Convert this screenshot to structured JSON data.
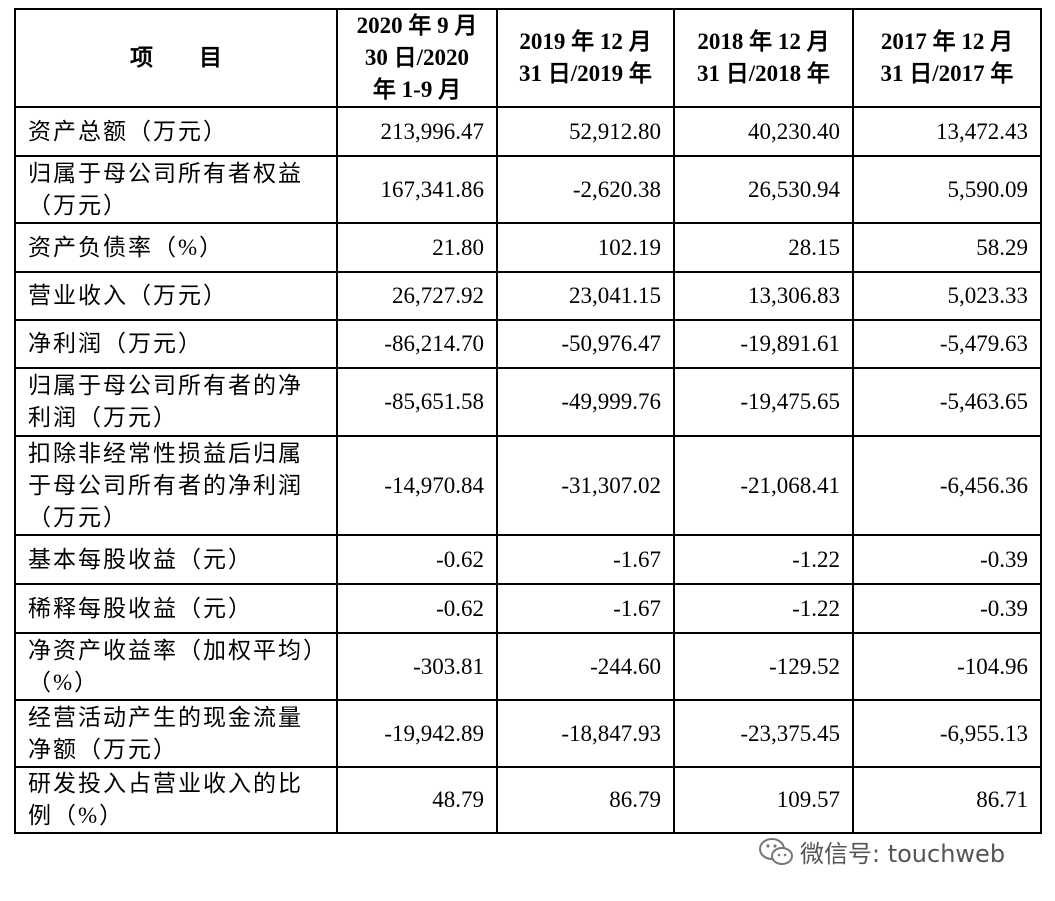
{
  "table": {
    "header": [
      [
        "项　　目"
      ],
      [
        "2020 年 9 月",
        "30 日/2020",
        "年 1-9 月"
      ],
      [
        "2019 年 12 月",
        "31 日/2019 年"
      ],
      [
        "2018 年 12 月",
        "31 日/2018 年"
      ],
      [
        "2017 年 12 月",
        "31 日/2017 年"
      ]
    ],
    "rows": [
      {
        "label": [
          "资产总额（万元）"
        ],
        "values": [
          "213,996.47",
          "52,912.80",
          "40,230.40",
          "13,472.43"
        ]
      },
      {
        "label": [
          "归属于母公司所有者权益",
          "（万元）"
        ],
        "values": [
          "167,341.86",
          "-2,620.38",
          "26,530.94",
          "5,590.09"
        ]
      },
      {
        "label": [
          "资产负债率（%）"
        ],
        "values": [
          "21.80",
          "102.19",
          "28.15",
          "58.29"
        ]
      },
      {
        "label": [
          "营业收入（万元）"
        ],
        "values": [
          "26,727.92",
          "23,041.15",
          "13,306.83",
          "5,023.33"
        ]
      },
      {
        "label": [
          "净利润（万元）"
        ],
        "values": [
          "-86,214.70",
          "-50,976.47",
          "-19,891.61",
          "-5,479.63"
        ]
      },
      {
        "label": [
          "归属于母公司所有者的净",
          "利润（万元）"
        ],
        "values": [
          "-85,651.58",
          "-49,999.76",
          "-19,475.65",
          "-5,463.65"
        ]
      },
      {
        "label": [
          "扣除非经常性损益后归属",
          "于母公司所有者的净利润",
          "（万元）"
        ],
        "values": [
          "-14,970.84",
          "-31,307.02",
          "-21,068.41",
          "-6,456.36"
        ]
      },
      {
        "label": [
          "基本每股收益（元）"
        ],
        "values": [
          "-0.62",
          "-1.67",
          "-1.22",
          "-0.39"
        ]
      },
      {
        "label": [
          "稀释每股收益（元）"
        ],
        "values": [
          "-0.62",
          "-1.67",
          "-1.22",
          "-0.39"
        ]
      },
      {
        "label": [
          "净资产收益率（加权平均）",
          "（%）"
        ],
        "values": [
          "-303.81",
          "-244.60",
          "-129.52",
          "-104.96"
        ]
      },
      {
        "label": [
          "经营活动产生的现金流量",
          "净额（万元）"
        ],
        "values": [
          "-19,942.89",
          "-18,847.93",
          "-23,375.45",
          "-6,955.13"
        ]
      },
      {
        "label": [
          "研发投入占营业收入的比",
          "例（%）"
        ],
        "values": [
          "48.79",
          "86.79",
          "109.57",
          "86.71"
        ]
      }
    ]
  },
  "watermark": "微信号: touchweb"
}
